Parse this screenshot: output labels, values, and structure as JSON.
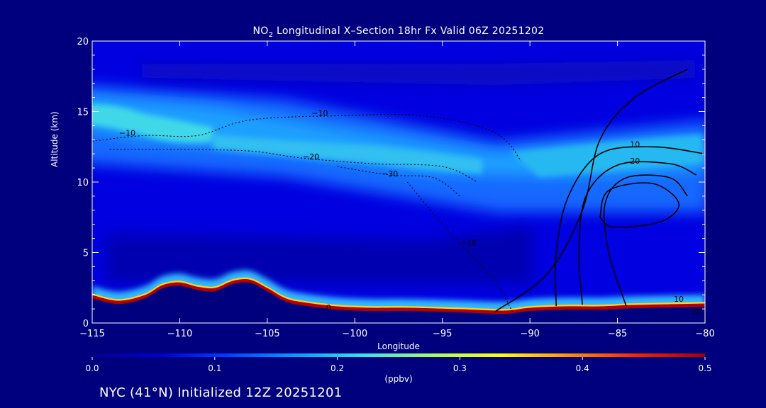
{
  "title": {
    "prefix": "NO",
    "subscript": "2",
    "suffix": " Longitudinal X–Section 18hr  Fx Valid 06Z 20251202"
  },
  "footer": "NYC (41°N) Initialized 12Z 20251201",
  "colorbar": {
    "unit_label": "(ppbv)",
    "min": 0.0,
    "max": 0.5,
    "ticks": [
      "0.0",
      "0.1",
      "0.2",
      "0.3",
      "0.4",
      "0.5"
    ],
    "stops": [
      "#000090",
      "#0000d0",
      "#0040ff",
      "#00a0ff",
      "#30e8e8",
      "#a0ff60",
      "#ffff00",
      "#ff9000",
      "#ff2000",
      "#a00000"
    ]
  },
  "chart_data": {
    "type": "heatmap",
    "variable": "NO2 mixing ratio",
    "xlabel": "Longitude",
    "ylabel": "Altitude (km)",
    "xlim": [
      -115,
      -80
    ],
    "ylim": [
      0,
      20
    ],
    "x_ticks": [
      "−115",
      "−110",
      "−105",
      "−100",
      "−95",
      "−90",
      "−85",
      "−80"
    ],
    "x_tick_values": [
      -115,
      -110,
      -105,
      -100,
      -95,
      -90,
      -85,
      -80
    ],
    "y_ticks": [
      "0",
      "5",
      "10",
      "15",
      "20"
    ],
    "y_tick_values": [
      0,
      5,
      10,
      15,
      20
    ],
    "high_no2_layer": {
      "description_value_ppbv": 0.5,
      "altitude_km": [
        0.5,
        1.5
      ]
    },
    "upper_plume": {
      "lon_range": [
        -115,
        -88
      ],
      "alt_center_km_start": 14.5,
      "alt_center_km_end": 11,
      "peak_ppbv": 0.22
    },
    "contour_labels": [
      {
        "text": "−10",
        "lon": -102,
        "alt": 14.7
      },
      {
        "text": "−10",
        "lon": -113,
        "alt": 13.3
      },
      {
        "text": "−20",
        "lon": -102.5,
        "alt": 11.6
      },
      {
        "text": "−30",
        "lon": -98,
        "alt": 10.4
      },
      {
        "text": "10",
        "lon": -84,
        "alt": 12.5
      },
      {
        "text": "20",
        "lon": -84,
        "alt": 11.3
      },
      {
        "text": "−10",
        "lon": -93.5,
        "alt": 5.5
      },
      {
        "text": "0",
        "lon": -101.5,
        "alt": 0.9
      },
      {
        "text": "10",
        "lon": -81.5,
        "alt": 1.5
      },
      {
        "text": "10",
        "lon": -80.5,
        "alt": 0.6
      }
    ],
    "terrain_km": [
      [
        -115,
        1.8
      ],
      [
        -113.5,
        1.4
      ],
      [
        -112,
        1.8
      ],
      [
        -111,
        2.5
      ],
      [
        -110,
        2.7
      ],
      [
        -109,
        2.4
      ],
      [
        -108,
        2.3
      ],
      [
        -107,
        2.8
      ],
      [
        -106,
        2.9
      ],
      [
        -105,
        2.3
      ],
      [
        -104,
        1.6
      ],
      [
        -103,
        1.3
      ],
      [
        -101,
        1.0
      ],
      [
        -99,
        0.9
      ],
      [
        -97,
        0.9
      ],
      [
        -94,
        0.8
      ],
      [
        -91.5,
        0.7
      ],
      [
        -90,
        0.9
      ],
      [
        -88,
        1.0
      ],
      [
        -86,
        1.0
      ],
      [
        -84,
        1.1
      ],
      [
        -80,
        1.2
      ]
    ],
    "positive_contours": [
      {
        "level": 10,
        "points": [
          [
            -92,
            0.8
          ],
          [
            -89,
            3.5
          ],
          [
            -87,
            8
          ],
          [
            -86,
            13
          ],
          [
            -84,
            16
          ],
          [
            -81,
            18
          ]
        ]
      },
      {
        "level": 10,
        "points": [
          [
            -88.5,
            1.2
          ],
          [
            -88.5,
            5
          ],
          [
            -87.8,
            9
          ],
          [
            -86,
            12
          ],
          [
            -83,
            12.5
          ],
          [
            -80,
            12
          ]
        ]
      },
      {
        "level": 20,
        "points": [
          [
            -87,
            1.3
          ],
          [
            -87.2,
            5
          ],
          [
            -86.8,
            9
          ],
          [
            -85,
            11.2
          ],
          [
            -82,
            11.3
          ],
          [
            -80.5,
            10.5
          ]
        ]
      },
      {
        "level": 30,
        "points": [
          [
            -84.5,
            1.2
          ],
          [
            -85.5,
            5
          ],
          [
            -85.7,
            8.5
          ],
          [
            -84.5,
            10.3
          ],
          [
            -82,
            10.3
          ],
          [
            -81,
            9
          ]
        ]
      },
      {
        "level": 40,
        "points": [
          [
            -86,
            7.5
          ],
          [
            -85.5,
            9.4
          ],
          [
            -83,
            9.9
          ],
          [
            -81.5,
            8.5
          ],
          [
            -82.5,
            7.2
          ],
          [
            -85.2,
            6.8
          ],
          [
            -86,
            7.5
          ]
        ]
      }
    ],
    "negative_contours": [
      {
        "level": -10,
        "points": [
          [
            -115,
            12.9
          ],
          [
            -112,
            13.3
          ],
          [
            -109,
            13.3
          ],
          [
            -106,
            14.4
          ],
          [
            -101,
            14.7
          ],
          [
            -96,
            14.7
          ],
          [
            -92,
            13.5
          ],
          [
            -90.5,
            11.5
          ]
        ]
      },
      {
        "level": -20,
        "points": [
          [
            -114,
            12.3
          ],
          [
            -110,
            12.3
          ],
          [
            -106,
            12.2
          ],
          [
            -103,
            11.7
          ],
          [
            -99,
            11.3
          ],
          [
            -95,
            11.1
          ],
          [
            -93,
            10
          ]
        ]
      },
      {
        "level": -30,
        "points": [
          [
            -101,
            11.1
          ],
          [
            -98,
            10.5
          ],
          [
            -95.5,
            10.3
          ],
          [
            -94,
            9
          ]
        ]
      },
      {
        "level": -10,
        "points": [
          [
            -97,
            10
          ],
          [
            -95,
            7
          ],
          [
            -93.5,
            5
          ],
          [
            -92,
            3
          ],
          [
            -91,
            0.8
          ]
        ]
      }
    ]
  }
}
